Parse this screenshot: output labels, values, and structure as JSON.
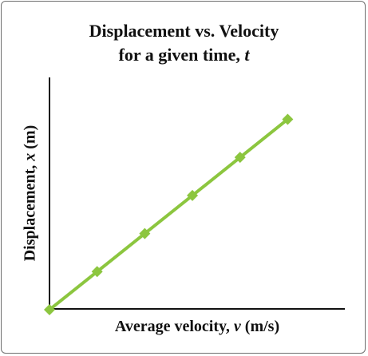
{
  "chart_data": {
    "type": "line",
    "title_line1": "Displacement vs. Velocity",
    "title_line2_prefix": "for a given time, ",
    "title_line2_var": "t",
    "xlabel_prefix": "Average velocity, ",
    "xlabel_var": "v",
    "xlabel_unit": " (m/s)",
    "ylabel_prefix": "Displacement, ",
    "ylabel_var": "x",
    "ylabel_unit": " (m)",
    "x": [
      0,
      1,
      2,
      3,
      4,
      5
    ],
    "y": [
      0,
      1,
      2,
      3,
      4,
      5
    ],
    "xlim": [
      0,
      6.2
    ],
    "ylim": [
      0,
      6.1
    ],
    "grid": false,
    "series_color": "#8cc63f",
    "axis_color": "#111111"
  }
}
